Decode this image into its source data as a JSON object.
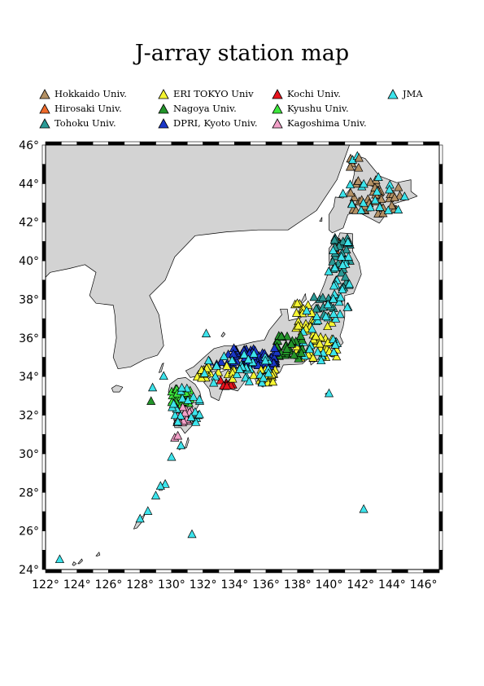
{
  "title": "J-array station map",
  "legend": [
    {
      "label": "Hokkaido Univ.",
      "color": "#b39064"
    },
    {
      "label": "Hirosaki Univ.",
      "color": "#ef6a2a"
    },
    {
      "label": "Tohoku Univ.",
      "color": "#2a9a96"
    },
    {
      "label": "ERI TOKYO Univ",
      "color": "#f5f531"
    },
    {
      "label": "Nagoya Univ.",
      "color": "#23952a"
    },
    {
      "label": "DPRI, Kyoto Univ.",
      "color": "#1a37c8"
    },
    {
      "label": "Kochi Univ.",
      "color": "#e8141e"
    },
    {
      "label": "Kyushu Univ.",
      "color": "#3de83d"
    },
    {
      "label": "Kagoshima Univ.",
      "color": "#f2a0c8"
    },
    {
      "label": "JMA",
      "color": "#3ce4ec"
    }
  ],
  "axes": {
    "lon_min": 122,
    "lon_max": 147,
    "lat_min": 24,
    "lat_max": 46,
    "x_ticks": [
      "122°",
      "124°",
      "126°",
      "128°",
      "130°",
      "132°",
      "134°",
      "136°",
      "138°",
      "140°",
      "142°",
      "144°",
      "146°"
    ],
    "y_ticks": [
      "24°",
      "26°",
      "28°",
      "30°",
      "32°",
      "34°",
      "36°",
      "38°",
      "40°",
      "42°",
      "44°",
      "46°"
    ]
  },
  "land_color": "#d3d3d3",
  "ocean_color": "#ffffff"
}
